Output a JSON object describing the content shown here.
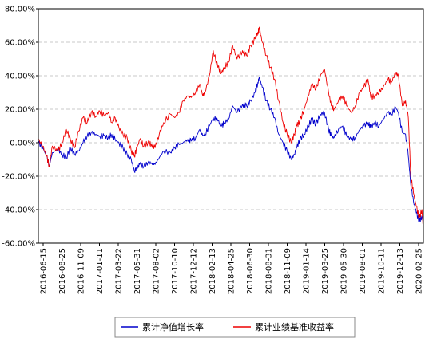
{
  "chart_data": {
    "type": "line",
    "ylim": [
      -60,
      80
    ],
    "y_ticks": [
      80,
      60,
      40,
      20,
      0,
      -20,
      -40,
      -60
    ],
    "y_tick_labels": [
      "80.00%",
      "60.00%",
      "40.00%",
      "20.00%",
      "0.00%",
      "-20.00%",
      "-40.00%",
      "-60.00%"
    ],
    "x_tick_labels": [
      "2016-06-15",
      "2016-08-25",
      "2016-11-09",
      "2017-01-11",
      "2017-03-22",
      "2017-05-31",
      "2017-08-02",
      "2017-10-10",
      "2017-12-12",
      "2018-02-13",
      "2018-04-25",
      "2018-06-30",
      "2018-08-31",
      "2018-11-09",
      "2019-01-14",
      "2019-03-25",
      "2019-05-30",
      "2019-08-01",
      "2019-10-11",
      "2019-12-13",
      "2020-02-25"
    ],
    "xlim": [
      "2016-06-15",
      "2020-04-20"
    ],
    "grid": true,
    "legend_position": "bottom",
    "series": [
      {
        "name": "累计净值增长率",
        "color": "#0000cc",
        "points": [
          [
            "2016-06-15",
            0
          ],
          [
            "2016-07-01",
            -3
          ],
          [
            "2016-07-15",
            -8
          ],
          [
            "2016-07-25",
            -14
          ],
          [
            "2016-08-05",
            -6
          ],
          [
            "2016-08-25",
            -4
          ],
          [
            "2016-09-10",
            -7
          ],
          [
            "2016-09-25",
            -9
          ],
          [
            "2016-10-10",
            -3
          ],
          [
            "2016-10-25",
            -7
          ],
          [
            "2016-11-09",
            -5
          ],
          [
            "2016-11-25",
            0
          ],
          [
            "2016-12-10",
            4
          ],
          [
            "2016-12-25",
            6
          ],
          [
            "2017-01-11",
            5
          ],
          [
            "2017-01-25",
            4
          ],
          [
            "2017-02-10",
            4
          ],
          [
            "2017-02-25",
            3
          ],
          [
            "2017-03-10",
            5
          ],
          [
            "2017-03-22",
            2
          ],
          [
            "2017-04-05",
            0
          ],
          [
            "2017-04-20",
            -3
          ],
          [
            "2017-05-05",
            -7
          ],
          [
            "2017-05-20",
            -10
          ],
          [
            "2017-05-31",
            -17
          ],
          [
            "2017-06-10",
            -15
          ],
          [
            "2017-06-20",
            -13
          ],
          [
            "2017-07-05",
            -14
          ],
          [
            "2017-07-20",
            -12
          ],
          [
            "2017-08-02",
            -12
          ],
          [
            "2017-08-15",
            -13
          ],
          [
            "2017-08-30",
            -9
          ],
          [
            "2017-09-15",
            -5
          ],
          [
            "2017-10-10",
            -6
          ],
          [
            "2017-10-25",
            -3
          ],
          [
            "2017-11-10",
            -1
          ],
          [
            "2017-11-25",
            0
          ],
          [
            "2017-12-12",
            2
          ],
          [
            "2017-12-25",
            1
          ],
          [
            "2018-01-10",
            3
          ],
          [
            "2018-01-25",
            8
          ],
          [
            "2018-02-05",
            4
          ],
          [
            "2018-02-13",
            5
          ],
          [
            "2018-03-01",
            10
          ],
          [
            "2018-03-15",
            15
          ],
          [
            "2018-04-01",
            13
          ],
          [
            "2018-04-15",
            10
          ],
          [
            "2018-04-25",
            12
          ],
          [
            "2018-05-10",
            14
          ],
          [
            "2018-05-25",
            22
          ],
          [
            "2018-06-10",
            18
          ],
          [
            "2018-06-30",
            23
          ],
          [
            "2018-07-15",
            22
          ],
          [
            "2018-07-30",
            25
          ],
          [
            "2018-08-15",
            30
          ],
          [
            "2018-08-25",
            36
          ],
          [
            "2018-08-31",
            39
          ],
          [
            "2018-09-10",
            33
          ],
          [
            "2018-09-25",
            25
          ],
          [
            "2018-10-10",
            20
          ],
          [
            "2018-10-25",
            15
          ],
          [
            "2018-11-09",
            5
          ],
          [
            "2018-11-25",
            0
          ],
          [
            "2018-12-10",
            -5
          ],
          [
            "2018-12-25",
            -10
          ],
          [
            "2019-01-05",
            -7
          ],
          [
            "2019-01-14",
            -3
          ],
          [
            "2019-01-25",
            2
          ],
          [
            "2019-02-10",
            5
          ],
          [
            "2019-02-25",
            10
          ],
          [
            "2019-03-10",
            14
          ],
          [
            "2019-03-25",
            11
          ],
          [
            "2019-04-10",
            17
          ],
          [
            "2019-04-25",
            18
          ],
          [
            "2019-05-10",
            8
          ],
          [
            "2019-05-20",
            4
          ],
          [
            "2019-05-30",
            3
          ],
          [
            "2019-06-15",
            8
          ],
          [
            "2019-07-01",
            10
          ],
          [
            "2019-07-15",
            4
          ],
          [
            "2019-08-01",
            2
          ],
          [
            "2019-08-15",
            3
          ],
          [
            "2019-09-01",
            8
          ],
          [
            "2019-09-15",
            10
          ],
          [
            "2019-10-01",
            12
          ],
          [
            "2019-10-11",
            9
          ],
          [
            "2019-10-25",
            12
          ],
          [
            "2019-11-10",
            10
          ],
          [
            "2019-11-25",
            14
          ],
          [
            "2019-12-13",
            18
          ],
          [
            "2019-12-25",
            17
          ],
          [
            "2020-01-10",
            21
          ],
          [
            "2020-01-20",
            18
          ],
          [
            "2020-02-03",
            6
          ],
          [
            "2020-02-15",
            5
          ],
          [
            "2020-02-25",
            -8
          ],
          [
            "2020-03-05",
            -25
          ],
          [
            "2020-03-15",
            -35
          ],
          [
            "2020-03-25",
            -42
          ],
          [
            "2020-04-05",
            -47
          ],
          [
            "2020-04-15",
            -44
          ],
          [
            "2020-04-20",
            -48
          ]
        ]
      },
      {
        "name": "累计业绩基准收益率",
        "color": "#ee0000",
        "points": [
          [
            "2016-06-15",
            2
          ],
          [
            "2016-07-01",
            -2
          ],
          [
            "2016-07-15",
            -8
          ],
          [
            "2016-07-25",
            -14
          ],
          [
            "2016-08-05",
            -2
          ],
          [
            "2016-08-25",
            -5
          ],
          [
            "2016-09-10",
            0
          ],
          [
            "2016-09-25",
            8
          ],
          [
            "2016-10-10",
            2
          ],
          [
            "2016-10-25",
            -3
          ],
          [
            "2016-11-09",
            7
          ],
          [
            "2016-11-25",
            15
          ],
          [
            "2016-12-10",
            12
          ],
          [
            "2016-12-25",
            18
          ],
          [
            "2017-01-11",
            16
          ],
          [
            "2017-01-25",
            19
          ],
          [
            "2017-02-10",
            16
          ],
          [
            "2017-02-25",
            18
          ],
          [
            "2017-03-10",
            12
          ],
          [
            "2017-03-22",
            15
          ],
          [
            "2017-04-05",
            9
          ],
          [
            "2017-04-20",
            5
          ],
          [
            "2017-05-05",
            3
          ],
          [
            "2017-05-20",
            -5
          ],
          [
            "2017-05-31",
            -8
          ],
          [
            "2017-06-10",
            -3
          ],
          [
            "2017-06-20",
            2
          ],
          [
            "2017-07-05",
            -2
          ],
          [
            "2017-07-20",
            0
          ],
          [
            "2017-08-02",
            -1
          ],
          [
            "2017-08-15",
            -3
          ],
          [
            "2017-08-30",
            5
          ],
          [
            "2017-09-15",
            12
          ],
          [
            "2017-10-10",
            17
          ],
          [
            "2017-10-25",
            15
          ],
          [
            "2017-11-10",
            18
          ],
          [
            "2017-11-25",
            25
          ],
          [
            "2017-12-12",
            28
          ],
          [
            "2017-12-25",
            27
          ],
          [
            "2018-01-10",
            30
          ],
          [
            "2018-01-25",
            35
          ],
          [
            "2018-02-05",
            28
          ],
          [
            "2018-02-13",
            30
          ],
          [
            "2018-03-01",
            40
          ],
          [
            "2018-03-15",
            55
          ],
          [
            "2018-04-01",
            45
          ],
          [
            "2018-04-15",
            42
          ],
          [
            "2018-04-25",
            45
          ],
          [
            "2018-05-10",
            48
          ],
          [
            "2018-05-25",
            58
          ],
          [
            "2018-06-10",
            50
          ],
          [
            "2018-06-30",
            55
          ],
          [
            "2018-07-15",
            52
          ],
          [
            "2018-07-30",
            58
          ],
          [
            "2018-08-15",
            62
          ],
          [
            "2018-08-25",
            66
          ],
          [
            "2018-08-31",
            68
          ],
          [
            "2018-09-10",
            60
          ],
          [
            "2018-09-25",
            52
          ],
          [
            "2018-10-10",
            45
          ],
          [
            "2018-10-25",
            38
          ],
          [
            "2018-11-09",
            25
          ],
          [
            "2018-11-25",
            12
          ],
          [
            "2018-12-10",
            5
          ],
          [
            "2018-12-25",
            0
          ],
          [
            "2019-01-05",
            5
          ],
          [
            "2019-01-14",
            10
          ],
          [
            "2019-01-25",
            13
          ],
          [
            "2019-02-10",
            20
          ],
          [
            "2019-02-25",
            28
          ],
          [
            "2019-03-10",
            35
          ],
          [
            "2019-03-25",
            32
          ],
          [
            "2019-04-10",
            40
          ],
          [
            "2019-04-25",
            44
          ],
          [
            "2019-05-10",
            30
          ],
          [
            "2019-05-20",
            22
          ],
          [
            "2019-05-30",
            20
          ],
          [
            "2019-06-15",
            25
          ],
          [
            "2019-07-01",
            28
          ],
          [
            "2019-07-15",
            22
          ],
          [
            "2019-08-01",
            18
          ],
          [
            "2019-08-15",
            22
          ],
          [
            "2019-09-01",
            30
          ],
          [
            "2019-09-15",
            33
          ],
          [
            "2019-10-01",
            38
          ],
          [
            "2019-10-11",
            27
          ],
          [
            "2019-10-25",
            28
          ],
          [
            "2019-11-10",
            30
          ],
          [
            "2019-11-25",
            33
          ],
          [
            "2019-12-13",
            38
          ],
          [
            "2019-12-25",
            36
          ],
          [
            "2020-01-10",
            42
          ],
          [
            "2020-01-20",
            40
          ],
          [
            "2020-02-03",
            22
          ],
          [
            "2020-02-15",
            25
          ],
          [
            "2020-02-25",
            15
          ],
          [
            "2020-03-05",
            -20
          ],
          [
            "2020-03-15",
            -30
          ],
          [
            "2020-03-25",
            -38
          ],
          [
            "2020-04-05",
            -45
          ],
          [
            "2020-04-15",
            -40
          ],
          [
            "2020-04-20",
            -52
          ]
        ]
      }
    ]
  },
  "legend": {
    "items": [
      {
        "label": "累计净值增长率",
        "color": "#0000cc"
      },
      {
        "label": "累计业绩基准收益率",
        "color": "#ee0000"
      }
    ]
  }
}
